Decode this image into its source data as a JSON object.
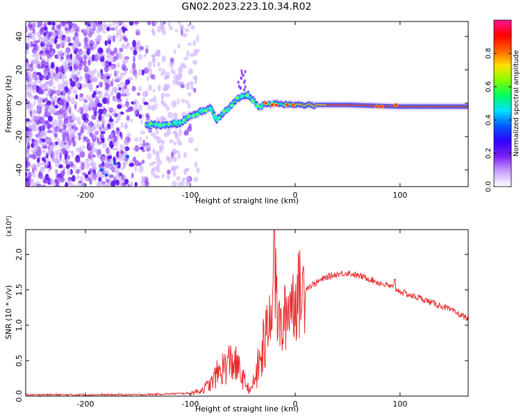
{
  "title": "GN02.2023.223.10.34.R02",
  "chart_data": [
    {
      "type": "heatmap",
      "panel": "top",
      "xlabel": "Height of straight line (km)",
      "ylabel": "Frequency (Hz)",
      "xlim": [
        -257,
        165
      ],
      "ylim": [
        -50,
        49
      ],
      "xticks": [
        -200,
        -100,
        0,
        100
      ],
      "yticks": [
        -40,
        -20,
        0,
        20,
        40
      ],
      "colorbar": {
        "label": "Normalized spectral amplitude",
        "range": [
          0,
          1
        ],
        "ticks": [
          0.0,
          0.2,
          0.4,
          0.6,
          0.8
        ],
        "tick_labels": [
          "0.0",
          "0.2",
          "0.4",
          "0.6",
          "0.8"
        ],
        "colormap": [
          "#ffffff",
          "#c9a0ff",
          "#7d22f0",
          "#3000ff",
          "#0058ff",
          "#00e0ff",
          "#00ff60",
          "#80ff00",
          "#ffe000",
          "#ff6000",
          "#ff0000",
          "#ff1493"
        ]
      },
      "ridge": {
        "x": [
          -140,
          -130,
          -120,
          -110,
          -100,
          -90,
          -80,
          -75,
          -70,
          -60,
          -55,
          -50,
          -45,
          -40,
          -35,
          -30,
          -20,
          -10,
          0,
          20,
          50,
          100,
          165
        ],
        "y": [
          -13,
          -13,
          -13,
          -12,
          -8,
          -5,
          -3,
          -10,
          -7,
          -1,
          3,
          4,
          5,
          2,
          -2,
          -1,
          0,
          -1,
          -1,
          -1,
          -1,
          -2,
          -2
        ]
      },
      "noise_region_x": [
        -257,
        -100
      ]
    },
    {
      "type": "line",
      "panel": "bottom",
      "xlabel": "Height of straight line (km)",
      "ylabel": "SNR (10 * v/v)",
      "y_multiplier_label": "(x10⁴)",
      "xlim": [
        -257,
        165
      ],
      "ylim": [
        0,
        2.35
      ],
      "xticks": [
        -200,
        -100,
        0,
        100
      ],
      "yticks": [
        0.0,
        0.5,
        1.0,
        1.5,
        2.0
      ],
      "ytick_labels": [
        "0.0",
        "0.5",
        "1.0",
        "1.5",
        "2.0"
      ],
      "color": "#e8292c",
      "series": [
        {
          "x": [
            -257,
            -200,
            -150,
            -100,
            -90,
            -80,
            -75,
            -70,
            -65,
            -60,
            -55,
            -50,
            -45,
            -42,
            -40,
            -35,
            -30,
            -25,
            -22,
            -20,
            -18,
            -15,
            -12,
            -10,
            -7,
            -5,
            -3,
            0,
            5,
            10,
            20,
            30,
            40,
            50,
            60,
            70,
            80,
            90,
            95,
            100,
            110,
            120,
            130,
            140,
            150,
            160,
            165
          ],
          "y": [
            0.02,
            0.02,
            0.02,
            0.04,
            0.08,
            0.18,
            0.3,
            0.38,
            0.45,
            0.5,
            0.4,
            0.25,
            0.12,
            0.08,
            0.18,
            0.4,
            0.7,
            1.1,
            1.5,
            1.9,
            1.3,
            1.0,
            0.9,
            1.1,
            1.2,
            1.4,
            1.35,
            1.38,
            1.45,
            1.52,
            1.6,
            1.68,
            1.72,
            1.74,
            1.7,
            1.66,
            1.6,
            1.55,
            1.52,
            1.48,
            1.42,
            1.38,
            1.32,
            1.27,
            1.2,
            1.13,
            1.1
          ]
        }
      ]
    }
  ]
}
